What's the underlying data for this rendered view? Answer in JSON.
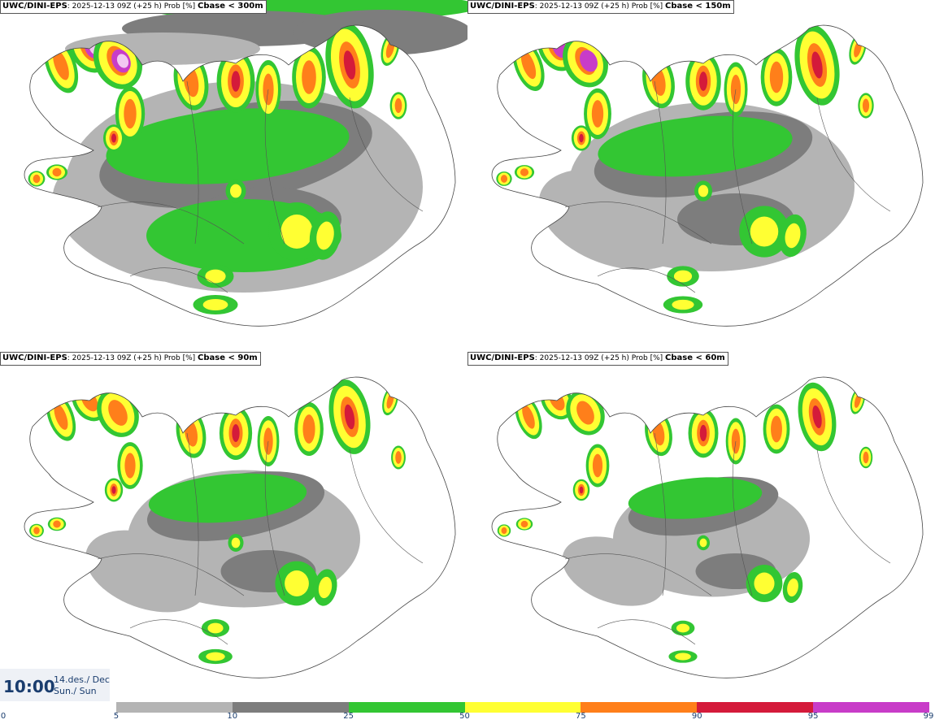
{
  "panels": [
    {
      "model": "UWC/DINI-EPS",
      "meta": ": 2025-12-13 09Z (+25 h) Prob [%]",
      "threshold": "Cbase < 300m"
    },
    {
      "model": "UWC/DINI-EPS",
      "meta": ": 2025-12-13 09Z (+25 h) Prob [%]",
      "threshold": "Cbase < 150m"
    },
    {
      "model": "UWC/DINI-EPS",
      "meta": ": 2025-12-13 09Z (+25 h) Prob [%]",
      "threshold": "Cbase < 90m"
    },
    {
      "model": "UWC/DINI-EPS",
      "meta": ": 2025-12-13 09Z (+25 h) Prob [%]",
      "threshold": "Cbase < 60m"
    }
  ],
  "valid_time": {
    "time": "10:00",
    "date_line1": "14.des./ Dec",
    "date_line2": "Sun./ Sun"
  },
  "legend": {
    "ticks": [
      "0",
      "5",
      "10",
      "25",
      "50",
      "75",
      "90",
      "95",
      "99"
    ],
    "colors": [
      "#ffffff",
      "#b4b4b4",
      "#7d7d7d",
      "#33c633",
      "#ffff33",
      "#ff7f1a",
      "#d41a3a",
      "#c83cc8",
      "#f2c8f2"
    ]
  }
}
